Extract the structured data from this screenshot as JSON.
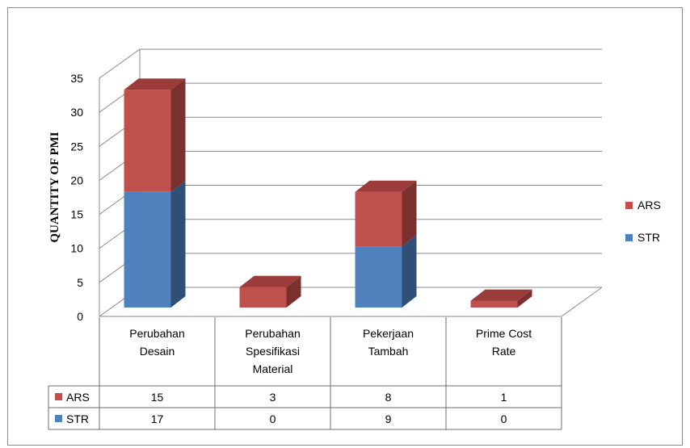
{
  "chart_data": {
    "type": "bar",
    "stacked": true,
    "three_d": true,
    "categories": [
      [
        "Perubahan",
        "Desain"
      ],
      [
        "Perubahan",
        "Spesifikasi",
        "Material"
      ],
      [
        "Pekerjaan",
        "Tambah"
      ],
      [
        "Prime Cost",
        "Rate"
      ]
    ],
    "series": [
      {
        "name": "STR",
        "values": [
          17,
          0,
          9,
          0
        ],
        "color": "#4f81bd",
        "side": "#2f4f77",
        "top": "#6f99cf"
      },
      {
        "name": "ARS",
        "values": [
          15,
          3,
          8,
          1
        ],
        "color": "#c0504d",
        "side": "#7a302e",
        "top": "#9c3c3a"
      }
    ],
    "ylabel": "QUANTITY OF PMI",
    "ylim": [
      0,
      35
    ],
    "yticks": [
      0,
      5,
      10,
      15,
      20,
      25,
      30,
      35
    ],
    "grid": true,
    "legend": "right",
    "legend_order": [
      "ARS",
      "STR"
    ],
    "data_table": true,
    "data_table_order": [
      "ARS",
      "STR"
    ]
  }
}
